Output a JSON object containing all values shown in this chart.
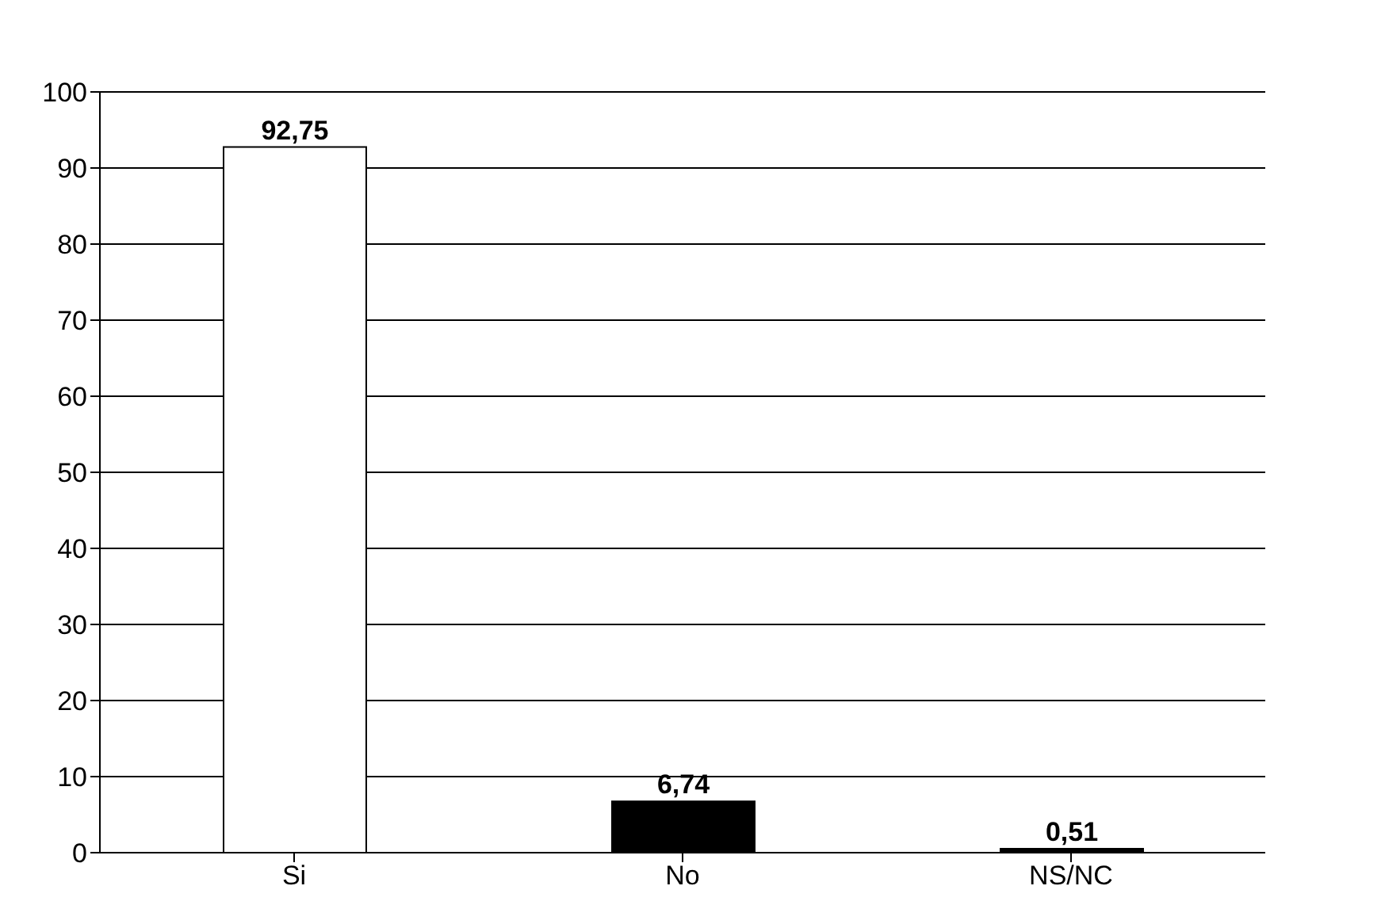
{
  "chart_data": {
    "type": "bar",
    "categories": [
      "Si",
      "No",
      "NS/NC"
    ],
    "values": [
      92.75,
      6.74,
      0.51
    ],
    "colors": [
      "#ffffff",
      "#000000",
      "#000000"
    ],
    "value_labels": [
      "92,75",
      "6,74",
      "0,51"
    ],
    "ylim": [
      0,
      100
    ],
    "yticks": [
      0,
      10,
      20,
      30,
      40,
      50,
      60,
      70,
      80,
      90,
      100
    ],
    "grid": "y",
    "legend": false
  }
}
